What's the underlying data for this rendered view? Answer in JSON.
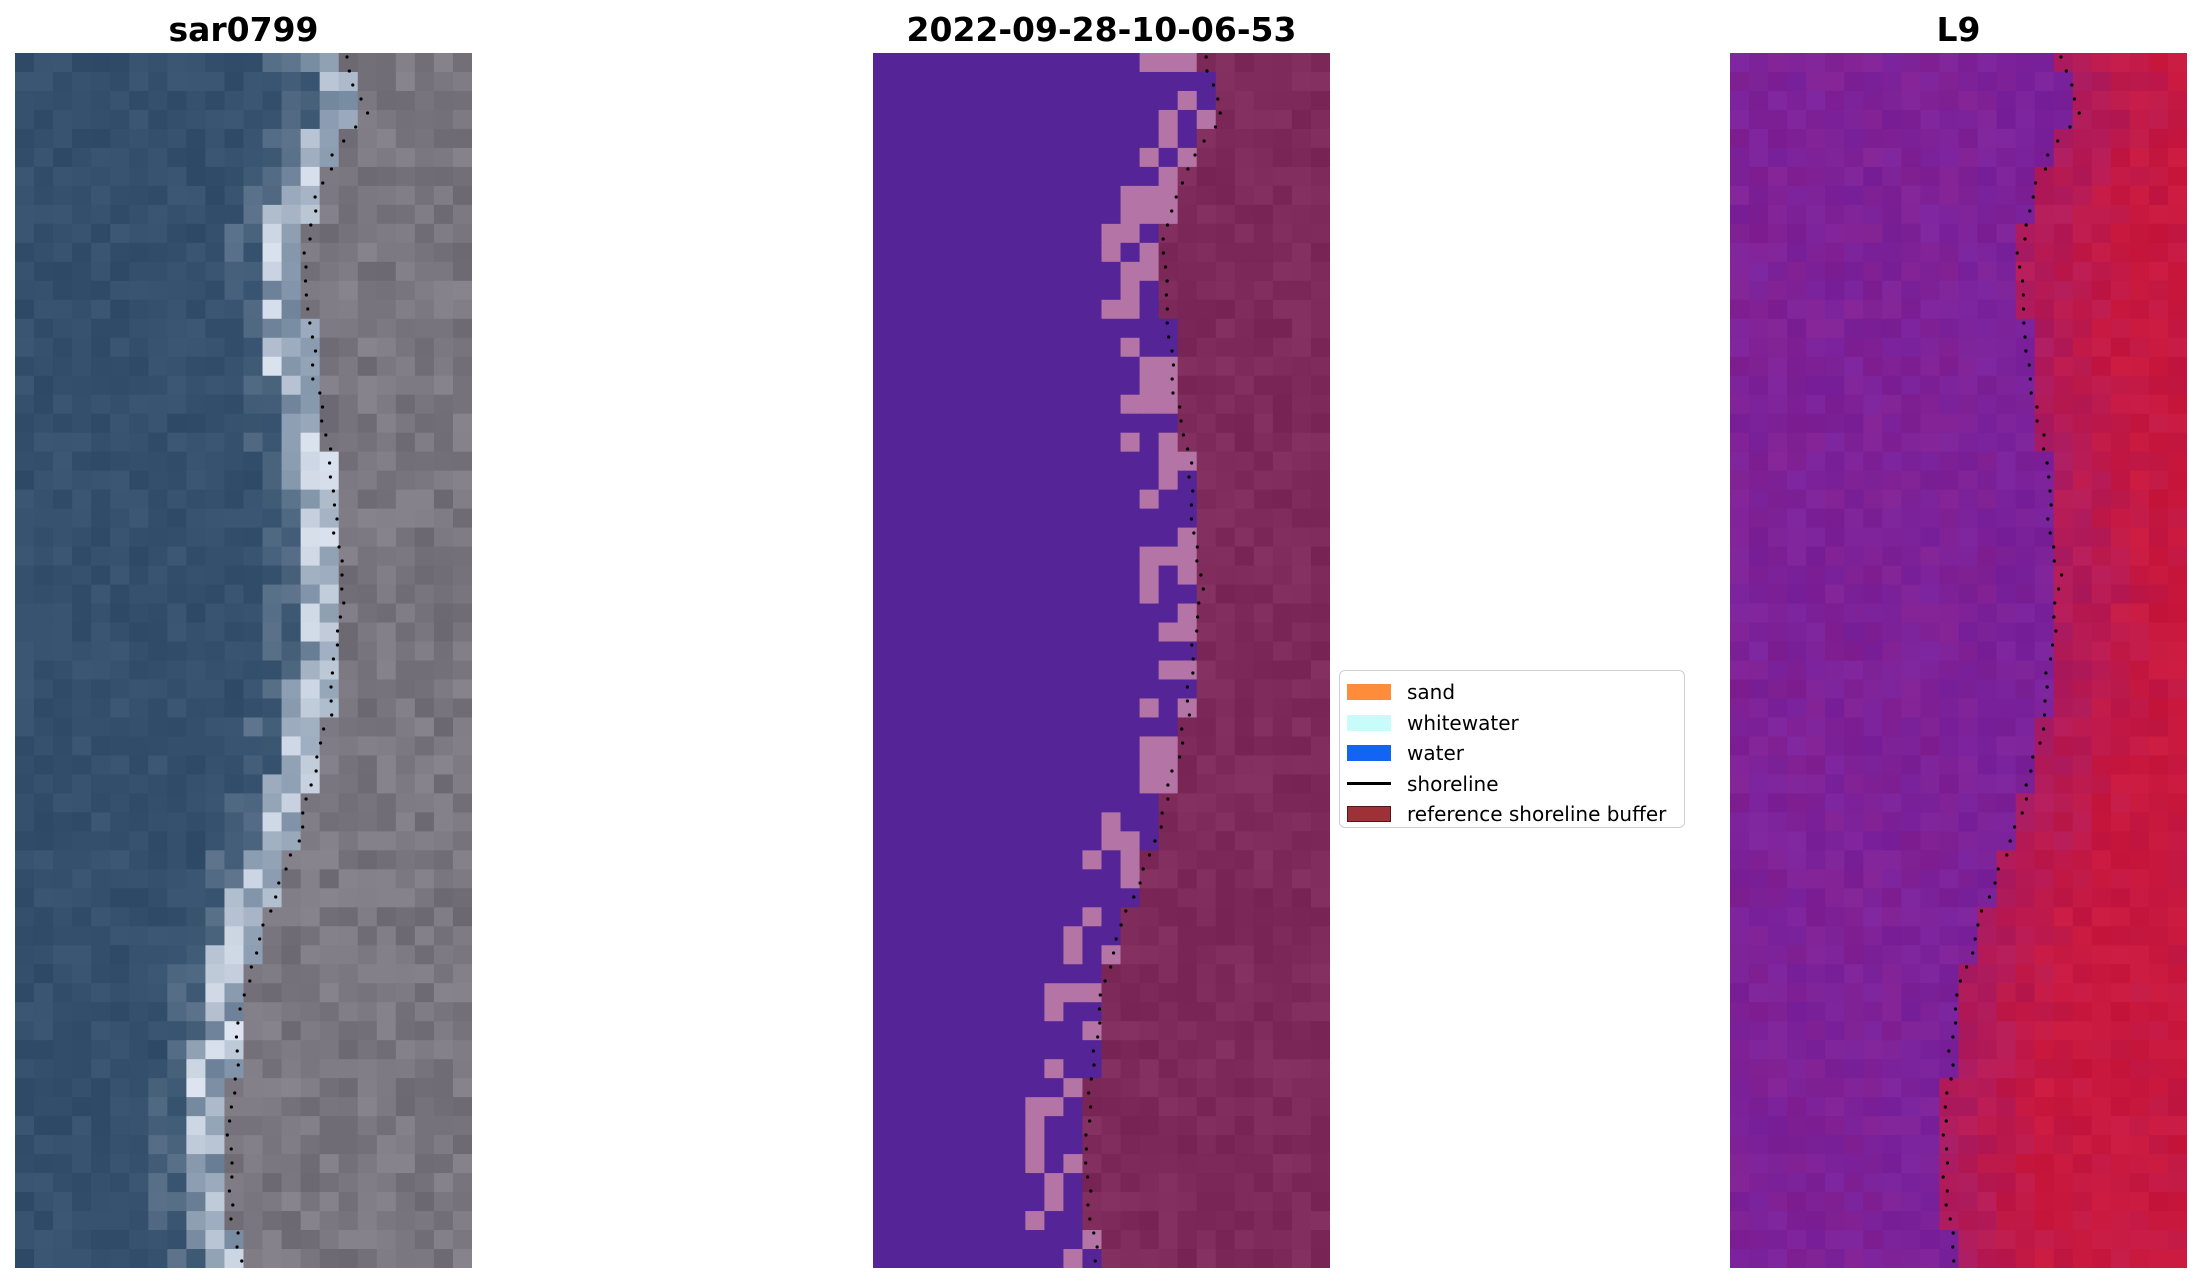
{
  "titles": {
    "left": "sar0799",
    "center": "2022-09-28-10-06-53",
    "right": "L9"
  },
  "legend": {
    "items": [
      {
        "label": "sand",
        "kind": "patch",
        "color": "#ff8c3a"
      },
      {
        "label": "whitewater",
        "kind": "patch",
        "color": "#c8fcfa"
      },
      {
        "label": "water",
        "kind": "patch",
        "color": "#1464f4"
      },
      {
        "label": "shoreline",
        "kind": "line",
        "color": "#000000"
      },
      {
        "label": "reference shoreline buffer",
        "kind": "patch",
        "color": "#9e3038"
      }
    ]
  },
  "colors": {
    "rgb_water": "#34506c",
    "rgb_land": "#7a7680",
    "rgb_whitewater": "#dfe6f2",
    "class_water": "#552496",
    "class_land": "#7e2a5a",
    "class_buffer_water": "#b474a6",
    "ndwi_low": "#7a229c",
    "ndwi_high": "#c8183e",
    "shoreline_points": "#000000"
  }
}
